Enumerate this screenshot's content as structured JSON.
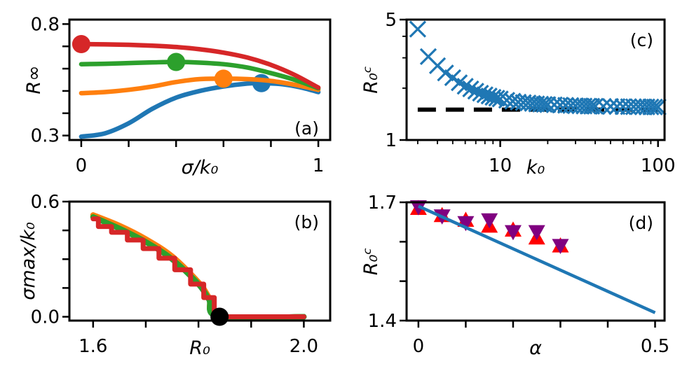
{
  "chart_data": [
    {
      "id": "a",
      "type": "line",
      "panel_label": "(a)",
      "xlabel": "σ/k₀",
      "ylabel": "R∞",
      "xlim": [
        -0.05,
        1.05
      ],
      "ylim": [
        0.28,
        0.82
      ],
      "xticks": [
        {
          "v": 0,
          "label": "0"
        },
        {
          "v": 0.2,
          "label": ""
        },
        {
          "v": 0.4,
          "label": ""
        },
        {
          "v": 0.6,
          "label": ""
        },
        {
          "v": 0.8,
          "label": ""
        },
        {
          "v": 1,
          "label": "1"
        }
      ],
      "yticks": [
        {
          "v": 0.3,
          "label": "0.3"
        },
        {
          "v": 0.4,
          "label": ""
        },
        {
          "v": 0.5,
          "label": ""
        },
        {
          "v": 0.6,
          "label": ""
        },
        {
          "v": 0.7,
          "label": ""
        },
        {
          "v": 0.8,
          "label": "0.8"
        }
      ],
      "series": [
        {
          "color": "#1f77b4",
          "x": [
            0,
            0.1,
            0.2,
            0.3,
            0.4,
            0.5,
            0.6,
            0.7,
            0.76,
            0.85,
            0.93,
            1.0
          ],
          "y": [
            0.295,
            0.31,
            0.355,
            0.42,
            0.47,
            0.5,
            0.52,
            0.533,
            0.535,
            0.53,
            0.515,
            0.495
          ],
          "peak": [
            0.76,
            0.535
          ]
        },
        {
          "color": "#ff7f0e",
          "x": [
            0,
            0.1,
            0.2,
            0.3,
            0.4,
            0.5,
            0.6,
            0.7,
            0.8,
            0.9,
            1.0
          ],
          "y": [
            0.49,
            0.495,
            0.505,
            0.52,
            0.54,
            0.553,
            0.555,
            0.553,
            0.545,
            0.528,
            0.505
          ],
          "peak": [
            0.6,
            0.555
          ]
        },
        {
          "color": "#2ca02c",
          "x": [
            0,
            0.1,
            0.2,
            0.3,
            0.4,
            0.5,
            0.6,
            0.7,
            0.8,
            0.9,
            1.0
          ],
          "y": [
            0.62,
            0.622,
            0.625,
            0.628,
            0.63,
            0.627,
            0.62,
            0.605,
            0.58,
            0.55,
            0.512
          ],
          "peak": [
            0.4,
            0.63
          ]
        },
        {
          "color": "#d62728",
          "x": [
            0,
            0.1,
            0.2,
            0.3,
            0.4,
            0.5,
            0.6,
            0.7,
            0.8,
            0.9,
            1.0
          ],
          "y": [
            0.71,
            0.709,
            0.707,
            0.703,
            0.697,
            0.687,
            0.672,
            0.65,
            0.617,
            0.572,
            0.515
          ],
          "peak": [
            0,
            0.71
          ]
        }
      ]
    },
    {
      "id": "b",
      "type": "line",
      "panel_label": "(b)",
      "xlabel": "R₀",
      "ylabel": "σmax/k₀",
      "xlim": [
        1.555,
        2.05
      ],
      "ylim": [
        -0.02,
        0.6
      ],
      "xticks": [
        {
          "v": 1.6,
          "label": "1.6"
        },
        {
          "v": 1.7,
          "label": ""
        },
        {
          "v": 1.8,
          "label": ""
        },
        {
          "v": 1.9,
          "label": ""
        },
        {
          "v": 2.0,
          "label": "2.0"
        }
      ],
      "yticks": [
        {
          "v": 0,
          "label": "0.0"
        },
        {
          "v": 0.15,
          "label": ""
        },
        {
          "v": 0.3,
          "label": ""
        },
        {
          "v": 0.45,
          "label": ""
        },
        {
          "v": 0.6,
          "label": "0.6"
        }
      ],
      "critical_point": [
        1.84,
        0
      ],
      "series": [
        {
          "color": "#1f77b4",
          "x": [
            1.6,
            1.65,
            1.7,
            1.75,
            1.8,
            1.82,
            1.84,
            2.0
          ],
          "y": [
            0.52,
            0.46,
            0.39,
            0.3,
            0.17,
            0.09,
            0.0,
            0.0
          ]
        },
        {
          "color": "#ff7f0e",
          "x": [
            1.6,
            1.65,
            1.7,
            1.75,
            1.8,
            1.82,
            1.84,
            2.0
          ],
          "y": [
            0.53,
            0.475,
            0.405,
            0.315,
            0.18,
            0.1,
            0.0,
            0.0
          ]
        },
        {
          "color": "#2ca02c",
          "x": [
            1.6,
            1.65,
            1.7,
            1.75,
            1.8,
            1.82,
            1.84,
            2.0
          ],
          "y": [
            0.52,
            0.46,
            0.39,
            0.3,
            0.17,
            0.09,
            0.0,
            0.0
          ]
        },
        {
          "color": "#d62728",
          "x": [
            1.6,
            1.62,
            1.65,
            1.68,
            1.71,
            1.74,
            1.77,
            1.8,
            1.82,
            1.84,
            2.0
          ],
          "y": [
            0.51,
            0.47,
            0.44,
            0.4,
            0.355,
            0.305,
            0.245,
            0.17,
            0.1,
            0.0,
            0.0
          ]
        }
      ]
    },
    {
      "id": "c",
      "type": "scatter",
      "panel_label": "(c)",
      "xlabel": "k₀",
      "ylabel": "R₀ᶜ",
      "xscale": "log",
      "yscale": "log",
      "xlim": [
        2.55,
        110
      ],
      "ylim": [
        1,
        5
      ],
      "xticks": [
        {
          "v": 10,
          "label": "10"
        },
        {
          "v": 100,
          "label": "100"
        }
      ],
      "yticks": [
        {
          "v": 1,
          "label": "1"
        },
        {
          "v": 5,
          "label": "5"
        }
      ],
      "marker": "x",
      "color": "#1f77b4",
      "points_x": [
        3,
        3.5,
        4,
        4.5,
        5,
        5.5,
        6,
        6.5,
        7,
        7.5,
        8,
        8.5,
        9,
        9.5,
        10,
        11,
        12,
        13,
        14,
        15,
        16,
        17,
        18,
        19,
        20,
        22,
        24,
        26,
        28,
        30,
        32,
        34,
        36,
        38,
        40,
        45,
        50,
        55,
        60,
        65,
        70,
        75,
        80,
        85,
        90,
        95,
        100
      ],
      "points_y": [
        4.4,
        3.05,
        2.7,
        2.45,
        2.3,
        2.15,
        2.05,
        1.98,
        1.92,
        1.87,
        1.83,
        1.8,
        1.77,
        1.75,
        1.73,
        1.7,
        1.68,
        1.66,
        1.65,
        1.64,
        1.63,
        1.62,
        1.615,
        1.61,
        1.605,
        1.6,
        1.595,
        1.59,
        1.585,
        1.58,
        1.578,
        1.575,
        1.573,
        1.571,
        1.57,
        1.568,
        1.566,
        1.564,
        1.562,
        1.561,
        1.56,
        1.559,
        1.558,
        1.557,
        1.556,
        1.555,
        1.555
      ],
      "reference_line": {
        "style": "dashed",
        "color": "#000000",
        "y": 1.5,
        "x_from": 3,
        "x_to": 100
      }
    },
    {
      "id": "d",
      "type": "scatter",
      "panel_label": "(d)",
      "xlabel": "α",
      "ylabel": "R₀ᶜ",
      "xlim": [
        -0.025,
        0.52
      ],
      "ylim": [
        1.4,
        1.7
      ],
      "xticks": [
        {
          "v": 0,
          "label": "0"
        },
        {
          "v": 0.1,
          "label": ""
        },
        {
          "v": 0.2,
          "label": ""
        },
        {
          "v": 0.3,
          "label": ""
        },
        {
          "v": 0.4,
          "label": ""
        },
        {
          "v": 0.5,
          "label": "0.5"
        }
      ],
      "yticks": [
        {
          "v": 1.4,
          "label": "1.4"
        },
        {
          "v": 1.5,
          "label": ""
        },
        {
          "v": 1.6,
          "label": ""
        },
        {
          "v": 1.7,
          "label": "1.7"
        }
      ],
      "fit_line": {
        "color": "#1f77b4",
        "x": [
          0,
          0.5
        ],
        "y": [
          1.69,
          1.42
        ]
      },
      "marker_series": [
        {
          "marker": "triangle-up",
          "color": "#ff0000",
          "x": [
            0,
            0.05,
            0.1,
            0.15,
            0.2,
            0.25,
            0.3
          ],
          "y": [
            1.685,
            1.667,
            1.655,
            1.64,
            1.63,
            1.61,
            1.59
          ]
        },
        {
          "marker": "triangle-down",
          "color": "#800080",
          "x": [
            0,
            0.05,
            0.1,
            0.15,
            0.2,
            0.25,
            0.3
          ],
          "y": [
            1.688,
            1.665,
            1.648,
            1.655,
            1.625,
            1.625,
            1.59
          ]
        }
      ]
    }
  ]
}
